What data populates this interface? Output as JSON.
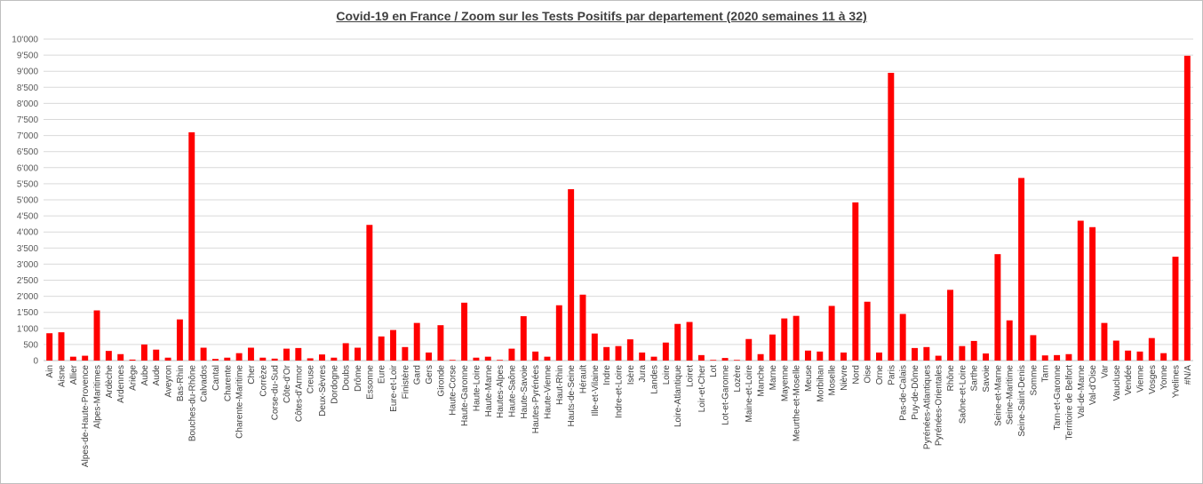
{
  "chart_data": {
    "type": "bar",
    "title": "Covid-19 en France / Zoom  sur les Tests Positifs par departement (2020 semaines 11 à 32)",
    "xlabel": "",
    "ylabel": "",
    "ylim": [
      0,
      10000
    ],
    "yticks": [
      "0",
      "500",
      "1'000",
      "1'500",
      "2'000",
      "2'500",
      "3'000",
      "3'500",
      "4'000",
      "4'500",
      "5'000",
      "5'500",
      "6'000",
      "6'500",
      "7'000",
      "7'500",
      "8'000",
      "8'500",
      "9'000",
      "9'500",
      "10'000"
    ],
    "grid": true,
    "legend": "none",
    "bar_color": "#ff0000",
    "categories": [
      "Ain",
      "Aisne",
      "Allier",
      "Alpes-de-Haute-Provence",
      "Alpes-Maritimes",
      "Ardèche",
      "Ardennes",
      "Ariège",
      "Aube",
      "Aude",
      "Aveyron",
      "Bas-Rhin",
      "Bouches-du-Rhône",
      "Calvados",
      "Cantal",
      "Charente",
      "Charente-Maritime",
      "Cher",
      "Corrèze",
      "Corse-du-Sud",
      "Côte-d'Or",
      "Côtes-d'Armor",
      "Creuse",
      "Deux-Sèvres",
      "Dordogne",
      "Doubs",
      "Drôme",
      "Essonne",
      "Eure",
      "Eure-et-Loir",
      "Finistère",
      "Gard",
      "Gers",
      "Gironde",
      "Haute-Corse",
      "Haute-Garonne",
      "Haute-Loire",
      "Haute-Marne",
      "Hautes-Alpes",
      "Haute-Saône",
      "Haute-Savoie",
      "Hautes-Pyrénées",
      "Haute-Vienne",
      "Haut-Rhin",
      "Hauts-de-Seine",
      "Hérault",
      "Ille-et-Vilaine",
      "Indre",
      "Indre-et-Loire",
      "Isère",
      "Jura",
      "Landes",
      "Loire",
      "Loire-Atlantique",
      "Loiret",
      "Loir-et-Cher",
      "Lot",
      "Lot-et-Garonne",
      "Lozère",
      "Maine-et-Loire",
      "Manche",
      "Marne",
      "Mayenne",
      "Meurthe-et-Moselle",
      "Meuse",
      "Morbihan",
      "Moselle",
      "Nièvre",
      "Nord",
      "Oise",
      "Orne",
      "Paris",
      "Pas-de-Calais",
      "Puy-de-Dôme",
      "Pyrénées-Atlantiques",
      "Pyrénées-Orientales",
      "Rhône",
      "Saône-et-Loire",
      "Sarthe",
      "Savoie",
      "Seine-et-Marne",
      "Seine-Maritime",
      "Seine-Saint-Denis",
      "Somme",
      "Tarn",
      "Tarn-et-Garonne",
      "Territoire de Belfort",
      "Val-de-Marne",
      "Val-d'Oise",
      "Var",
      "Vaucluse",
      "Vendée",
      "Vienne",
      "Vosges",
      "Yonne",
      "Yvelines",
      "#N/A"
    ],
    "values": [
      850,
      880,
      120,
      150,
      1560,
      300,
      200,
      30,
      500,
      340,
      90,
      1280,
      7100,
      400,
      50,
      90,
      230,
      400,
      90,
      60,
      370,
      390,
      70,
      190,
      90,
      540,
      400,
      4220,
      750,
      950,
      420,
      1170,
      250,
      1100,
      20,
      1800,
      90,
      120,
      20,
      370,
      1380,
      280,
      120,
      1720,
      5330,
      2050,
      840,
      420,
      450,
      660,
      250,
      120,
      560,
      1140,
      1200,
      170,
      20,
      80,
      20,
      670,
      200,
      810,
      1310,
      1390,
      310,
      280,
      1700,
      250,
      4920,
      1830,
      250,
      8950,
      1450,
      390,
      420,
      150,
      2200,
      450,
      610,
      220,
      3310,
      1250,
      5680,
      790,
      160,
      170,
      200,
      4350,
      4150,
      1170,
      620,
      310,
      280,
      700,
      230,
      3230,
      9480
    ]
  }
}
